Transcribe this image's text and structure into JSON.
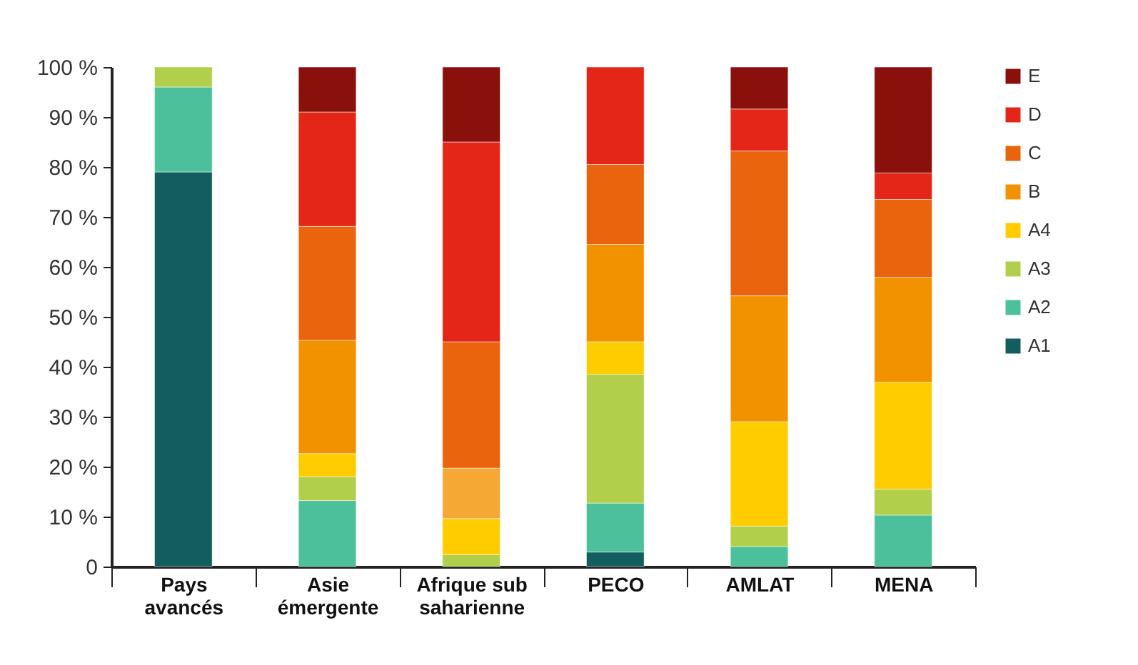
{
  "chart_data": {
    "type": "bar",
    "stacked": true,
    "legend": "right",
    "categories": [
      "Pays avancés",
      "Asie émergente",
      "Afrique sub saharienne",
      "PECO",
      "AMLAT",
      "MENA"
    ],
    "series": [
      {
        "name": "A1",
        "color": "#135d5f",
        "values": [
          79,
          null,
          null,
          2.9,
          null,
          null
        ]
      },
      {
        "name": "A2",
        "color": "#4cbf9b",
        "values": [
          17,
          13.2,
          null,
          9.8,
          4,
          10.3
        ]
      },
      {
        "name": "A3",
        "color": "#b2cf4c",
        "values": [
          4,
          4.8,
          2.4,
          25.8,
          4.1,
          5.2
        ]
      },
      {
        "name": "A4",
        "color": "#ffcc00",
        "values": [
          null,
          4.6,
          7.2,
          6.5,
          20.9,
          21.4
        ]
      },
      {
        "name": "B",
        "color": "#f39200",
        "colors": [
          null,
          "#f39200",
          "#f5a833",
          "#f39200",
          "#f39200",
          "#f39200"
        ],
        "values": [
          null,
          22.7,
          10.1,
          19.5,
          25.2,
          21
        ]
      },
      {
        "name": "C",
        "color": "#ea640e",
        "values": [
          null,
          22.8,
          25.3,
          16,
          29,
          15.6
        ]
      },
      {
        "name": "D",
        "color": "#e32618",
        "values": [
          null,
          22.9,
          40,
          19.5,
          8.4,
          5.3
        ]
      },
      {
        "name": "E",
        "color": "#8a100c",
        "values": [
          null,
          9,
          15,
          null,
          8.4,
          21.2
        ]
      }
    ],
    "ylim": [
      0,
      100
    ],
    "yticks": [
      {
        "value": 0,
        "label": "0"
      },
      {
        "value": 10,
        "label": "10 %"
      },
      {
        "value": 20,
        "label": "20 %"
      },
      {
        "value": 30,
        "label": "30 %"
      },
      {
        "value": 40,
        "label": "40 %"
      },
      {
        "value": 50,
        "label": "50 %"
      },
      {
        "value": 60,
        "label": "60 %"
      },
      {
        "value": 70,
        "label": "70 %"
      },
      {
        "value": 80,
        "label": "80 %"
      },
      {
        "value": 90,
        "label": "90 %"
      },
      {
        "value": 100,
        "label": "100 %"
      }
    ],
    "grid": false
  }
}
